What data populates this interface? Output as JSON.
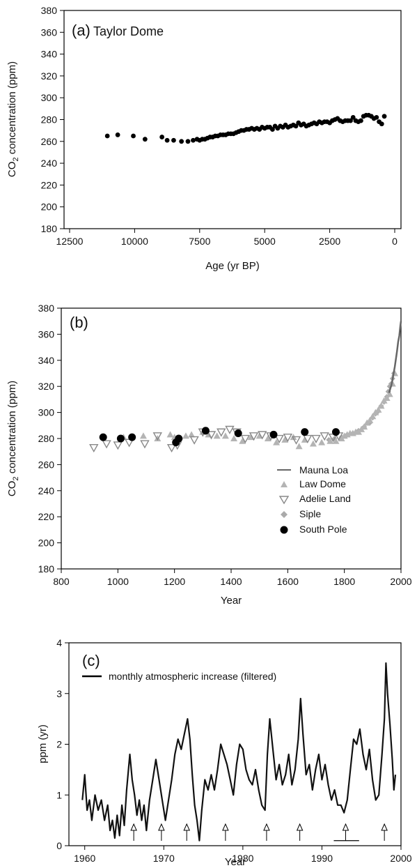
{
  "chart_data": [
    {
      "type": "scatter",
      "panel_label": "(a)",
      "title": "Taylor Dome",
      "xlabel": "Age (yr BP)",
      "ylabel": "CO2 concentration (ppm)",
      "xlim": [
        12500,
        0
      ],
      "ylim": [
        180,
        380
      ],
      "xticks": [
        "12500",
        "10000",
        "7500",
        "5000",
        "2500",
        "0"
      ],
      "yticks": [
        "180",
        "200",
        "220",
        "240",
        "260",
        "280",
        "300",
        "320",
        "340",
        "360",
        "380"
      ],
      "series": [
        {
          "x": [
            11050,
            10650,
            10050,
            9600,
            8950,
            8750,
            8500,
            8200,
            7950,
            7750,
            7600,
            7500,
            7400,
            7300,
            7200,
            7100,
            7000,
            6900,
            6800,
            6700,
            6600,
            6500,
            6400,
            6300,
            6200,
            6100,
            6000,
            5900,
            5800,
            5700,
            5600,
            5500,
            5400,
            5300,
            5200,
            5100,
            5000,
            4900,
            4800,
            4700,
            4600,
            4500,
            4400,
            4300,
            4200,
            4100,
            4000,
            3900,
            3800,
            3700,
            3600,
            3500,
            3400,
            3300,
            3200,
            3100,
            3000,
            2900,
            2800,
            2700,
            2600,
            2500,
            2400,
            2300,
            2200,
            2100,
            2000,
            1900,
            1800,
            1700,
            1600,
            1500,
            1400,
            1300,
            1200,
            1100,
            1000,
            900,
            800,
            700,
            600,
            500,
            400
          ],
          "y": [
            265,
            266,
            265,
            262,
            264,
            261,
            261,
            260,
            260,
            261,
            262,
            261,
            262,
            262,
            263,
            264,
            264,
            265,
            265,
            266,
            266,
            266,
            267,
            267,
            267,
            268,
            269,
            270,
            270,
            271,
            271,
            272,
            271,
            272,
            271,
            273,
            272,
            273,
            273,
            271,
            274,
            272,
            274,
            273,
            275,
            273,
            274,
            275,
            274,
            277,
            275,
            276,
            274,
            275,
            276,
            277,
            276,
            278,
            277,
            278,
            278,
            277,
            279,
            280,
            281,
            279,
            278,
            279,
            279,
            279,
            282,
            279,
            278,
            279,
            283,
            284,
            284,
            283,
            281,
            282,
            278,
            276,
            283
          ]
        }
      ]
    },
    {
      "type": "line+scatter",
      "panel_label": "(b)",
      "xlabel": "Year",
      "ylabel": "CO2 concentration (ppm)",
      "xlim": [
        800,
        2000
      ],
      "ylim": [
        180,
        380
      ],
      "xticks": [
        "800",
        "1000",
        "1200",
        "1400",
        "1600",
        "1800",
        "2000"
      ],
      "yticks": [
        "180",
        "200",
        "220",
        "240",
        "260",
        "280",
        "300",
        "320",
        "340",
        "360",
        "380"
      ],
      "legend_position": "lower-right",
      "series": [
        {
          "name": "Mauna Loa",
          "type": "line",
          "color": "#666666",
          "x": [
            1958,
            1962,
            1966,
            1970,
            1974,
            1978,
            1982,
            1986,
            1990,
            1994,
            1998,
            2000
          ],
          "y": [
            315,
            318,
            321,
            325,
            330,
            335,
            341,
            347,
            354,
            359,
            367,
            370
          ]
        },
        {
          "name": "Law Dome",
          "type": "scatter",
          "marker": "triangle-up",
          "color": "#b4b4b4",
          "x": [
            1010,
            1020,
            1090,
            1140,
            1185,
            1200,
            1240,
            1260,
            1300,
            1320,
            1350,
            1380,
            1410,
            1440,
            1470,
            1500,
            1530,
            1560,
            1590,
            1620,
            1640,
            1660,
            1690,
            1720,
            1750,
            1770,
            1790,
            1800,
            1810,
            1820,
            1830,
            1840,
            1850,
            1860,
            1870,
            1880,
            1890,
            1900,
            1910,
            1920,
            1930,
            1940,
            1950,
            1960,
            1970,
            1978
          ],
          "y": [
            280,
            281,
            282,
            280,
            283,
            281,
            282,
            283,
            285,
            283,
            282,
            282,
            280,
            278,
            281,
            282,
            280,
            277,
            279,
            281,
            274,
            279,
            276,
            277,
            278,
            278,
            280,
            282,
            283,
            284,
            284,
            285,
            285,
            287,
            289,
            292,
            294,
            297,
            300,
            302,
            305,
            309,
            311,
            314,
            322,
            330
          ]
        },
        {
          "name": "Adelie Land",
          "type": "scatter",
          "marker": "triangle-down-open",
          "color": "#888888",
          "x": [
            915,
            960,
            1000,
            1040,
            1095,
            1140,
            1190,
            1210,
            1270,
            1300,
            1330,
            1365,
            1395,
            1420,
            1450,
            1480,
            1510,
            1540,
            1570,
            1600,
            1630,
            1670,
            1700,
            1730,
            1760,
            1780
          ],
          "y": [
            273,
            276,
            275,
            277,
            276,
            282,
            273,
            275,
            279,
            285,
            283,
            285,
            287,
            285,
            280,
            282,
            283,
            282,
            280,
            281,
            279,
            280,
            280,
            282,
            281,
            282
          ]
        },
        {
          "name": "Siple",
          "type": "scatter",
          "marker": "diamond",
          "color": "#aaaaaa",
          "x": [
            1745,
            1765,
            1790,
            1810,
            1830,
            1850,
            1870,
            1890,
            1900,
            1910,
            1920,
            1930,
            1940,
            1950,
            1955,
            1960,
            1965,
            1970,
            1975
          ],
          "y": [
            279,
            280,
            281,
            283,
            284,
            286,
            289,
            292,
            296,
            299,
            301,
            305,
            308,
            312,
            316,
            320,
            322,
            326,
            330
          ]
        },
        {
          "name": "South Pole",
          "type": "scatter",
          "marker": "circle",
          "color": "#000000",
          "x": [
            948,
            1010,
            1050,
            1205,
            1215,
            1310,
            1425,
            1550,
            1660,
            1770
          ],
          "y": [
            281,
            280,
            281,
            277,
            280,
            286,
            284,
            283,
            285,
            285
          ]
        }
      ]
    },
    {
      "type": "line",
      "panel_label": "(c)",
      "xlabel": "Year",
      "ylabel": "ppm (yr)",
      "xlim": [
        1958,
        2000
      ],
      "ylim": [
        0,
        4
      ],
      "xticks": [
        "1960",
        "1970",
        "1980",
        "1990",
        "2000"
      ],
      "yticks": [
        "0",
        "1",
        "2",
        "3",
        "4"
      ],
      "legend_position": "top-left",
      "series": [
        {
          "name": "monthly atmospheric increase (filtered)",
          "color": "#111111",
          "x": [
            1959.7,
            1960.0,
            1960.3,
            1960.6,
            1960.9,
            1961.3,
            1961.7,
            1962.1,
            1962.5,
            1962.9,
            1963.2,
            1963.5,
            1963.8,
            1964.1,
            1964.4,
            1964.7,
            1965.0,
            1965.3,
            1965.7,
            1966.0,
            1966.3,
            1966.6,
            1966.9,
            1967.2,
            1967.5,
            1967.8,
            1968.2,
            1968.6,
            1969.0,
            1969.4,
            1969.8,
            1970.2,
            1970.6,
            1971.0,
            1971.4,
            1971.8,
            1972.2,
            1972.6,
            1973.0,
            1973.3,
            1973.6,
            1973.9,
            1974.2,
            1974.5,
            1974.8,
            1975.2,
            1975.6,
            1976.0,
            1976.4,
            1976.8,
            1977.2,
            1977.6,
            1978.0,
            1978.4,
            1978.8,
            1979.2,
            1979.6,
            1980.0,
            1980.4,
            1980.8,
            1981.2,
            1981.6,
            1982.0,
            1982.4,
            1982.8,
            1983.1,
            1983.4,
            1983.8,
            1984.2,
            1984.6,
            1985.0,
            1985.4,
            1985.8,
            1986.2,
            1986.6,
            1987.0,
            1987.3,
            1987.6,
            1988.0,
            1988.4,
            1988.8,
            1989.2,
            1989.6,
            1990.0,
            1990.4,
            1990.8,
            1991.2,
            1991.6,
            1992.0,
            1992.4,
            1992.8,
            1993.2,
            1993.6,
            1994.0,
            1994.4,
            1994.8,
            1995.2,
            1995.6,
            1996.0,
            1996.4,
            1996.8,
            1997.2,
            1997.6,
            1997.9,
            1998.1,
            1998.3,
            1998.6,
            1998.9,
            1999.1,
            1999.3
          ],
          "y": [
            0.9,
            1.4,
            0.7,
            0.9,
            0.5,
            1.0,
            0.7,
            0.9,
            0.5,
            0.8,
            0.3,
            0.5,
            0.15,
            0.6,
            0.2,
            0.8,
            0.4,
            1.1,
            1.8,
            1.3,
            1.0,
            0.6,
            0.9,
            0.5,
            0.8,
            0.3,
            0.9,
            1.3,
            1.7,
            1.3,
            0.9,
            0.5,
            0.9,
            1.3,
            1.8,
            2.1,
            1.9,
            2.2,
            2.5,
            2.1,
            1.4,
            0.8,
            0.5,
            0.1,
            0.7,
            1.3,
            1.1,
            1.4,
            1.1,
            1.5,
            2.0,
            1.8,
            1.6,
            1.3,
            1.0,
            1.6,
            2.0,
            1.9,
            1.5,
            1.3,
            1.2,
            1.5,
            1.1,
            0.8,
            0.7,
            1.8,
            2.5,
            1.9,
            1.3,
            1.6,
            1.2,
            1.4,
            1.8,
            1.2,
            1.5,
            2.1,
            2.9,
            2.2,
            1.4,
            1.6,
            1.1,
            1.5,
            1.8,
            1.3,
            1.6,
            1.2,
            0.9,
            1.1,
            0.8,
            0.8,
            0.65,
            0.9,
            1.5,
            2.1,
            2.0,
            2.3,
            1.8,
            1.5,
            1.9,
            1.3,
            0.9,
            1.0,
            1.8,
            2.5,
            3.6,
            3.0,
            2.4,
            1.7,
            1.1,
            1.4
          ]
        }
      ],
      "event_arrows_x": [
        1966.2,
        1969.7,
        1972.9,
        1977.8,
        1983.0,
        1987.2,
        1993.0,
        1997.9
      ],
      "event_bar": {
        "x": [
          1991.5,
          1994.7
        ],
        "y": 0.1
      }
    }
  ]
}
